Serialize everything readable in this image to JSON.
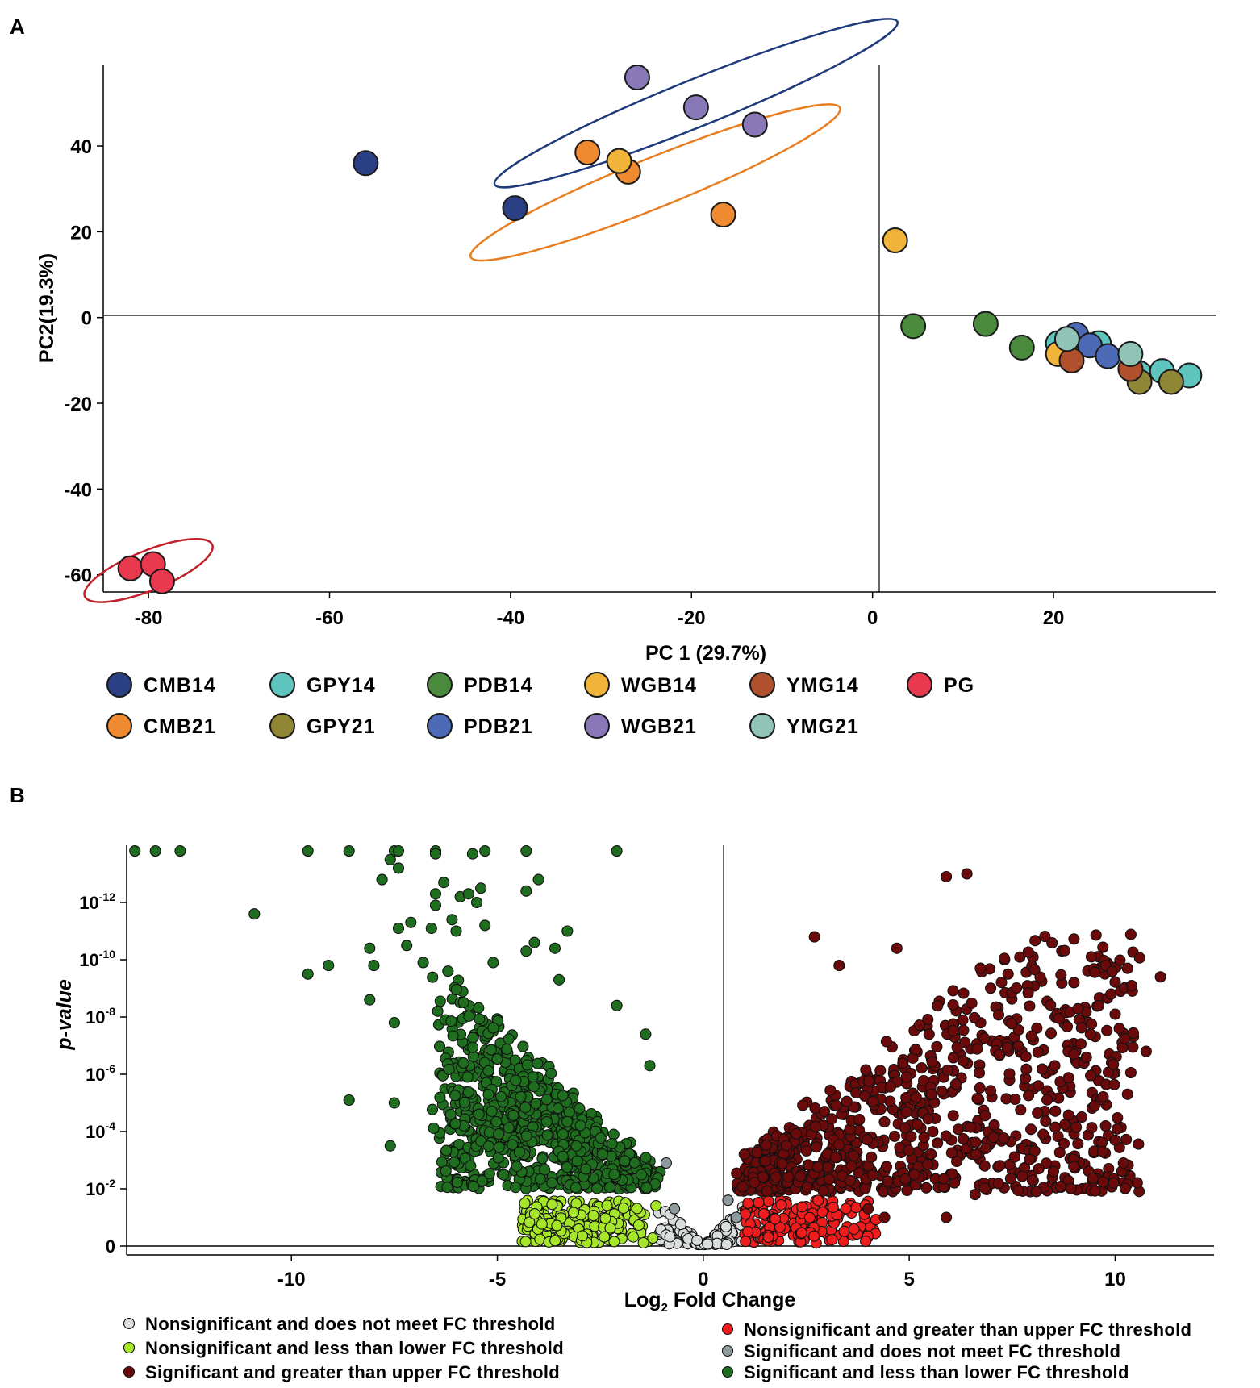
{
  "panelA": {
    "label": "A",
    "chart_data": {
      "type": "scatter",
      "xlabel": "PC 1 (29.7%)",
      "ylabel": "PC2(19.3%)",
      "xlim": [
        -85,
        38
      ],
      "ylim": [
        -64,
        59
      ],
      "xticks": [
        {
          "v": -80,
          "label": "-80"
        },
        {
          "v": -60,
          "label": "-60"
        },
        {
          "v": -40,
          "label": "-40"
        },
        {
          "v": -20,
          "label": "-20"
        },
        {
          "v": 0,
          "label": "0"
        },
        {
          "v": 20,
          "label": "20"
        }
      ],
      "yticks": [
        {
          "v": 40,
          "label": "40"
        },
        {
          "v": 20,
          "label": "20"
        },
        {
          "v": 0,
          "label": "0"
        },
        {
          "v": -20,
          "label": "-20"
        },
        {
          "v": -40,
          "label": "-40"
        },
        {
          "v": -60,
          "label": "-60"
        }
      ],
      "series": [
        {
          "name": "CMB14",
          "color": "#2b3f85",
          "points": [
            [
              -56,
              36
            ],
            [
              -39.5,
              25.5
            ]
          ]
        },
        {
          "name": "CMB21",
          "color": "#f08a30",
          "points": [
            [
              -31.5,
              38.5
            ],
            [
              -27,
              34
            ],
            [
              -16.5,
              24
            ]
          ]
        },
        {
          "name": "GPY14",
          "color": "#5ec4be",
          "points": [
            [
              20.5,
              -6
            ],
            [
              25,
              -6
            ],
            [
              29.5,
              -13
            ],
            [
              32,
              -12.5
            ],
            [
              35,
              -13.5
            ]
          ]
        },
        {
          "name": "GPY21",
          "color": "#8f8636",
          "points": [
            [
              29.5,
              -15
            ],
            [
              33,
              -15
            ]
          ]
        },
        {
          "name": "PDB14",
          "color": "#4a8a3c",
          "points": [
            [
              4.5,
              -2
            ],
            [
              12.5,
              -1.5
            ],
            [
              16.5,
              -7
            ]
          ]
        },
        {
          "name": "PDB21",
          "color": "#4c6ab5",
          "points": [
            [
              22.5,
              -4
            ],
            [
              24,
              -6.5
            ],
            [
              26,
              -9
            ]
          ]
        },
        {
          "name": "WGB14",
          "color": "#f2b33a",
          "points": [
            [
              -28,
              36.5
            ],
            [
              2.5,
              18
            ],
            [
              20.5,
              -8.5
            ]
          ]
        },
        {
          "name": "WGB21",
          "color": "#8878b8",
          "points": [
            [
              -26,
              56
            ],
            [
              -19.5,
              49
            ],
            [
              -13,
              45
            ]
          ]
        },
        {
          "name": "YMG14",
          "color": "#b0502d",
          "points": [
            [
              22,
              -10
            ],
            [
              28.5,
              -12
            ]
          ]
        },
        {
          "name": "YMG21",
          "color": "#8fc4b6",
          "points": [
            [
              21.5,
              -5
            ],
            [
              28.5,
              -8.5
            ]
          ]
        },
        {
          "name": "PG",
          "color": "#e8394f",
          "points": [
            [
              -82,
              -58.5
            ],
            [
              -79.5,
              -57.5
            ],
            [
              -78.5,
              -61.5
            ]
          ]
        }
      ],
      "ellipses": [
        {
          "group": "WGB21",
          "color": "#1d3a7a",
          "cx": -19.5,
          "cy": 50,
          "rx": 24,
          "ry": 5.5,
          "angle": -22
        },
        {
          "group": "CMB21",
          "color": "#e77e21",
          "cx": -24,
          "cy": 31.5,
          "rx": 22,
          "ry": 5.8,
          "angle": -22
        },
        {
          "group": "PG",
          "color": "#c0202a",
          "cx": -80,
          "cy": -59,
          "rx": 7.6,
          "ry": 4.6,
          "angle": -22
        }
      ],
      "legend": [
        [
          "CMB14",
          "GPY14",
          "PDB14",
          "WGB14",
          "YMG14",
          "PG"
        ],
        [
          "CMB21",
          "GPY21",
          "PDB21",
          "WGB21",
          "YMG21"
        ]
      ]
    }
  },
  "panelB": {
    "label": "B",
    "chart_data": {
      "type": "scatter",
      "xlabel_main": "Log",
      "xlabel_sub": "2",
      "xlabel_rest": " Fold Change",
      "ylabel": "p-value",
      "xlim": [
        -14,
        12.4
      ],
      "ylim": [
        0,
        14
      ],
      "xticks": [
        {
          "v": -10,
          "label": "-10"
        },
        {
          "v": -5,
          "label": "-5"
        },
        {
          "v": 0,
          "label": "0"
        },
        {
          "v": 5,
          "label": "5"
        },
        {
          "v": 10,
          "label": "10"
        }
      ],
      "yticks": [
        {
          "v": 0,
          "base": "0",
          "exp": ""
        },
        {
          "v": 2,
          "base": "10",
          "exp": "-2"
        },
        {
          "v": 4,
          "base": "10",
          "exp": "-4"
        },
        {
          "v": 6,
          "base": "10",
          "exp": "-6"
        },
        {
          "v": 8,
          "base": "10",
          "exp": "-8"
        },
        {
          "v": 10,
          "base": "10",
          "exp": "-10"
        },
        {
          "v": 12,
          "base": "10",
          "exp": "-12"
        }
      ],
      "categories": [
        {
          "key": "ns_nomeet",
          "label": "Nonsignificant and does not meet FC threshold",
          "color": "#d9dedd"
        },
        {
          "key": "ns_lower",
          "label": "Nonsignificant and less than lower FC threshold",
          "color": "#a6e62a"
        },
        {
          "key": "sig_upper",
          "label": "Significant and greater than upper FC threshold",
          "color": "#6b0a0a"
        },
        {
          "key": "ns_upper",
          "label": "Nonsignificant and greater than upper FC threshold",
          "color": "#ee1c1c"
        },
        {
          "key": "sig_nomeet",
          "label": "Significant and does not meet FC threshold",
          "color": "#8e9a9d"
        },
        {
          "key": "sig_lower",
          "label": "Significant and less than lower FC threshold",
          "color": "#1f6e1f"
        }
      ],
      "points": {
        "sig_lower": [
          [
            -13.8,
            13.8
          ],
          [
            -13.3,
            13.8
          ],
          [
            -12.7,
            13.8
          ],
          [
            -9.6,
            13.8
          ],
          [
            -8.6,
            13.8
          ],
          [
            -7.5,
            13.8
          ],
          [
            -7.4,
            13.8
          ],
          [
            -6.5,
            13.8
          ],
          [
            -6.5,
            13.7
          ],
          [
            -5.6,
            13.7
          ],
          [
            -5.3,
            13.8
          ],
          [
            -4.3,
            13.8
          ],
          [
            -2.1,
            13.8
          ],
          [
            -7.6,
            13.5
          ],
          [
            -7.4,
            13.2
          ],
          [
            -7.8,
            12.8
          ],
          [
            -6.3,
            12.7
          ],
          [
            -4.0,
            12.8
          ],
          [
            -5.4,
            12.5
          ],
          [
            -4.3,
            12.4
          ],
          [
            -6.5,
            12.3
          ],
          [
            -5.9,
            12.2
          ],
          [
            -5.5,
            12.0
          ],
          [
            -10.9,
            11.6
          ],
          [
            -7.1,
            11.3
          ],
          [
            -6.1,
            11.4
          ],
          [
            -7.4,
            11.1
          ],
          [
            -5.3,
            11.2
          ],
          [
            -3.3,
            11.0
          ],
          [
            -8.1,
            10.4
          ],
          [
            -7.2,
            10.5
          ],
          [
            -9.6,
            9.5
          ],
          [
            -9.1,
            9.8
          ],
          [
            -8.0,
            9.8
          ],
          [
            -8.1,
            8.6
          ],
          [
            -7.5,
            7.8
          ],
          [
            -8.6,
            5.1
          ],
          [
            -7.5,
            5.0
          ],
          [
            -7.6,
            3.5
          ],
          [
            -2.1,
            8.4
          ],
          [
            -1.4,
            7.4
          ],
          [
            -1.3,
            6.3
          ],
          [
            -6.5,
            11.9
          ],
          [
            -6.0,
            11.0
          ],
          [
            -4.3,
            10.3
          ],
          [
            -3.6,
            10.4
          ],
          [
            -6.8,
            9.9
          ],
          [
            -6.2,
            9.6
          ],
          [
            -5.1,
            9.9
          ],
          [
            -3.5,
            9.3
          ],
          [
            -4.1,
            10.6
          ],
          [
            -6.6,
            11.1
          ],
          [
            -5.7,
            12.3
          ]
        ]
      },
      "clusters": [
        {
          "cat": "sig_lower",
          "n": 760,
          "x": [
            -6.3,
            -1.2
          ],
          "y": [
            2.0,
            9.6
          ],
          "shape": "leftVolcano",
          "seed": 11
        },
        {
          "cat": "sig_upper",
          "n": 820,
          "x": [
            1.0,
            10.5
          ],
          "y": [
            1.9,
            11.0
          ],
          "shape": "rightVolcano",
          "seed": 23
        },
        {
          "cat": "ns_lower",
          "n": 190,
          "x": [
            -4.4,
            -1.0
          ],
          "y": [
            0.1,
            1.6
          ],
          "shape": "band",
          "seed": 37
        },
        {
          "cat": "ns_upper",
          "n": 150,
          "x": [
            1.0,
            4.2
          ],
          "y": [
            0.1,
            1.6
          ],
          "shape": "band",
          "seed": 41
        },
        {
          "cat": "ns_nomeet",
          "n": 120,
          "x": [
            -1.1,
            1.1
          ],
          "y": [
            0.0,
            1.8
          ],
          "shape": "vee",
          "seed": 53
        }
      ],
      "extra": {
        "sig_upper": [
          [
            5.9,
            12.9
          ],
          [
            6.4,
            13.0
          ],
          [
            2.7,
            10.8
          ],
          [
            4.7,
            10.4
          ],
          [
            3.3,
            9.8
          ],
          [
            10.3,
            9.7
          ],
          [
            11.1,
            9.4
          ],
          [
            10.4,
            9.1
          ],
          [
            7.4,
            9.5
          ],
          [
            9.0,
            9.2
          ],
          [
            9.9,
            8.8
          ],
          [
            9.6,
            8.4
          ],
          [
            10.0,
            8.1
          ],
          [
            10.1,
            7.6
          ],
          [
            9.4,
            7.4
          ],
          [
            9.0,
            6.7
          ],
          [
            10.3,
            5.3
          ],
          [
            9.5,
            4.9
          ],
          [
            10.0,
            3.7
          ],
          [
            9.7,
            3.3
          ],
          [
            10.2,
            2.9
          ],
          [
            8.5,
            2.6
          ],
          [
            6.6,
            1.8
          ],
          [
            5.9,
            1.0
          ],
          [
            4.4,
            1.0
          ],
          [
            4.0,
            1.3
          ]
        ],
        "sig_nomeet": [
          [
            -0.9,
            2.9
          ],
          [
            0.6,
            1.6
          ],
          [
            0.8,
            1.0
          ],
          [
            -0.7,
            1.3
          ]
        ]
      },
      "legend_left": [
        "ns_nomeet",
        "ns_lower",
        "sig_upper"
      ],
      "legend_right": [
        "ns_upper",
        "sig_nomeet",
        "sig_lower"
      ]
    }
  }
}
